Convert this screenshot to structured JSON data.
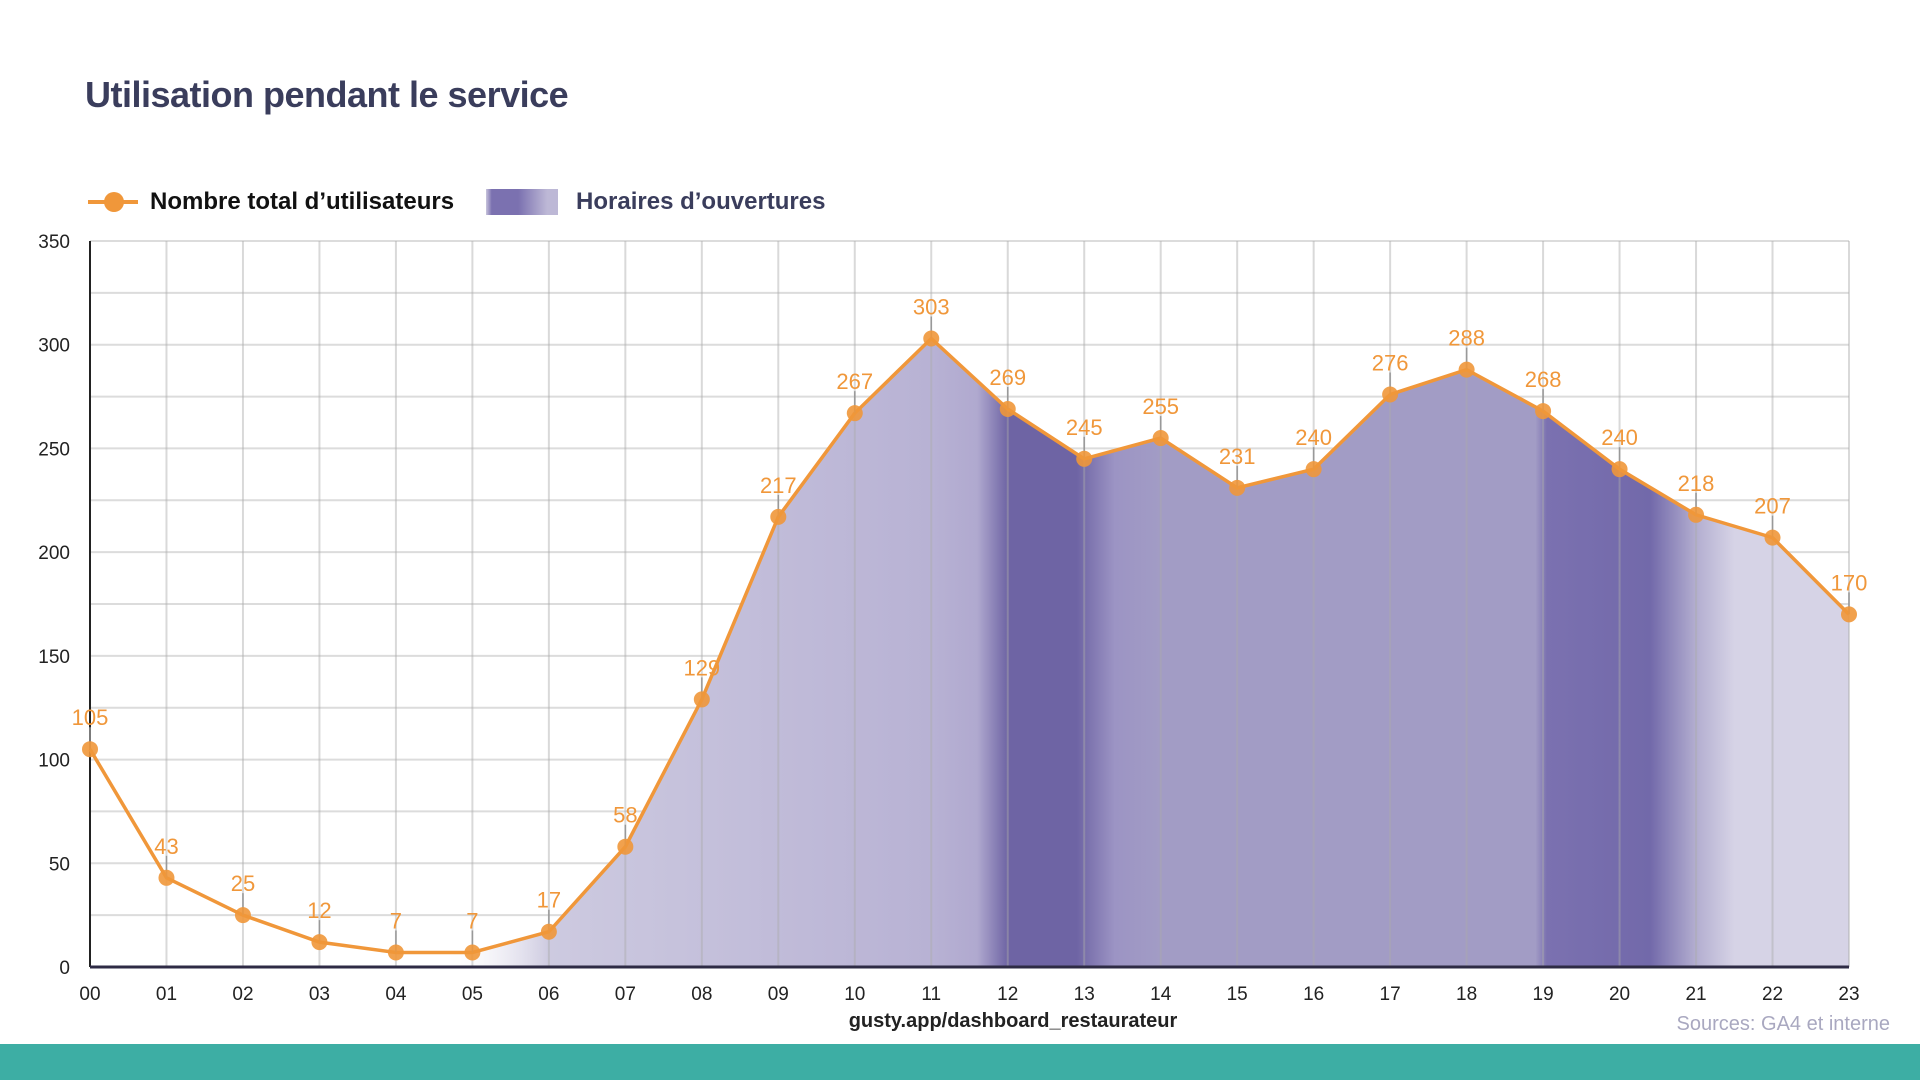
{
  "chart_data": {
    "type": "area",
    "title": "Utilisation pendant le service",
    "xlabel": "",
    "ylabel": "",
    "categories": [
      "00",
      "01",
      "02",
      "03",
      "04",
      "05",
      "06",
      "07",
      "08",
      "09",
      "10",
      "11",
      "12",
      "13",
      "14",
      "15",
      "16",
      "17",
      "18",
      "19",
      "20",
      "21",
      "22",
      "23"
    ],
    "series": [
      {
        "name": "Nombre total d’utilisateurs",
        "values": [
          105,
          43,
          25,
          12,
          7,
          7,
          17,
          58,
          129,
          217,
          267,
          303,
          269,
          245,
          255,
          231,
          240,
          276,
          288,
          268,
          240,
          218,
          207,
          170
        ],
        "color": "#f0973a"
      }
    ],
    "shaded_series_name": "Horaires d’ouvertures",
    "shade_color": "#7b71b0",
    "ylim": [
      0,
      350
    ],
    "yticks": [
      0,
      50,
      100,
      150,
      200,
      250,
      300,
      350
    ],
    "grid": true,
    "legend_position": "top-left",
    "data_labels": true
  },
  "footer": {
    "url": "gusty.app/dashboard_restaurateur",
    "sources": "Sources: GA4 et interne",
    "band_color": "#3daea4"
  }
}
